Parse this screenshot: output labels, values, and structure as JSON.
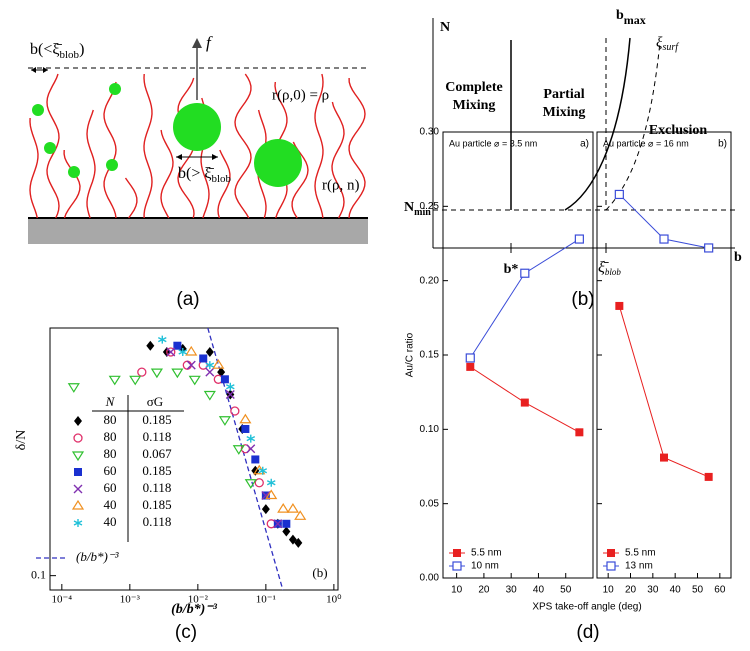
{
  "panel_labels": [
    "(a)",
    "(b)",
    "(c)",
    "(d)"
  ],
  "diagram_a": {
    "force": "f",
    "spacing_small": [
      "b(<",
      "ξ̄",
      "blob",
      ")"
    ],
    "spacing_large": [
      "b(> ",
      "ξ̄",
      "blob"
    ],
    "r_top": "r(ρ,0) = ρ",
    "r_chain": "r(ρ, n)"
  },
  "diagram_b": {
    "y_axis": "N",
    "x_axis": "b",
    "complete_mixing": [
      "Complete",
      "Mixing"
    ],
    "partial_mixing": [
      "Partial",
      "Mixing"
    ],
    "exclusion": "Exclusion",
    "b_max": [
      "b",
      "max"
    ],
    "xi_surf": [
      "ξ",
      "surf"
    ],
    "n_min": [
      "N",
      "min"
    ],
    "b_star": "b*",
    "xi_blob": [
      "ξ̄",
      "blob"
    ]
  },
  "chart_data": [
    {
      "type": "scatter",
      "xscale": "log",
      "yscale": "log",
      "xlabel": "(b/b*)⁻³",
      "ylabel": "δ/N",
      "panel_tag": "(b)",
      "xlim": [
        6.7e-05,
        1.15
      ],
      "ylim": [
        0.093,
        0.35
      ],
      "xticks": [
        {
          "value": 0.0001,
          "label": "10⁻⁴"
        },
        {
          "value": 0.001,
          "label": "10⁻³"
        },
        {
          "value": 0.01,
          "label": "10⁻²"
        },
        {
          "value": 0.1,
          "label": "10⁻¹"
        },
        {
          "value": 1,
          "label": "10⁰"
        }
      ],
      "yticks": [
        0.1
      ],
      "legend_headers": [
        "N",
        "σG"
      ],
      "series": [
        {
          "N": 80,
          "sigma_G": 0.185,
          "marker": "diamond",
          "color": "#000000",
          "x": [
            0.002,
            0.0035,
            0.006,
            0.015,
            0.022,
            0.03,
            0.045,
            0.07,
            0.1,
            0.15,
            0.2,
            0.25,
            0.3
          ],
          "y": [
            0.32,
            0.31,
            0.315,
            0.31,
            0.28,
            0.25,
            0.21,
            0.17,
            0.14,
            0.13,
            0.125,
            0.12,
            0.118
          ]
        },
        {
          "N": 80,
          "sigma_G": 0.118,
          "marker": "circle-open",
          "color": "#e0306a",
          "x": [
            0.0015,
            0.004,
            0.007,
            0.012,
            0.02,
            0.035,
            0.05,
            0.08,
            0.12
          ],
          "y": [
            0.28,
            0.31,
            0.29,
            0.29,
            0.27,
            0.23,
            0.19,
            0.16,
            0.13
          ]
        },
        {
          "N": 80,
          "sigma_G": 0.067,
          "marker": "triangle-down-open",
          "color": "#30c030",
          "x": [
            0.00015,
            0.0006,
            0.0012,
            0.0025,
            0.005,
            0.009,
            0.015,
            0.025,
            0.04,
            0.06
          ],
          "y": [
            0.26,
            0.27,
            0.27,
            0.28,
            0.28,
            0.27,
            0.25,
            0.22,
            0.19,
            0.16
          ]
        },
        {
          "N": 60,
          "sigma_G": 0.185,
          "marker": "square",
          "color": "#1a30d0",
          "x": [
            0.005,
            0.012,
            0.025,
            0.05,
            0.07,
            0.1,
            0.15,
            0.2
          ],
          "y": [
            0.32,
            0.3,
            0.27,
            0.21,
            0.18,
            0.15,
            0.13,
            0.13
          ]
        },
        {
          "N": 60,
          "sigma_G": 0.118,
          "marker": "x",
          "color": "#8030b0",
          "x": [
            0.004,
            0.008,
            0.015,
            0.03,
            0.06,
            0.1,
            0.15
          ],
          "y": [
            0.31,
            0.29,
            0.28,
            0.25,
            0.19,
            0.15,
            0.13
          ]
        },
        {
          "N": 40,
          "sigma_G": 0.185,
          "marker": "triangle-up-open",
          "color": "#f09020",
          "x": [
            0.008,
            0.02,
            0.05,
            0.08,
            0.12,
            0.18,
            0.25,
            0.32
          ],
          "y": [
            0.31,
            0.29,
            0.22,
            0.17,
            0.15,
            0.14,
            0.14,
            0.135
          ]
        },
        {
          "N": 40,
          "sigma_G": 0.118,
          "marker": "asterisk",
          "color": "#20c0d8",
          "x": [
            0.003,
            0.006,
            0.015,
            0.03,
            0.06,
            0.09,
            0.12
          ],
          "y": [
            0.33,
            0.31,
            0.29,
            0.26,
            0.2,
            0.17,
            0.16
          ]
        }
      ],
      "reference_line": {
        "name": "(b/b*)⁻³",
        "color": "#3030c0",
        "x": [
          0.014,
          0.178
        ],
        "y": [
          0.35,
          0.093
        ]
      }
    },
    {
      "type": "line",
      "annotation": "Au particle ⌀ = 3.5 nm",
      "panel_tag": "a)",
      "xlabel": "XPS take-off angle  (deg)",
      "ylabel": "Au/C ratio",
      "xlim": [
        5,
        60
      ],
      "ylim": [
        0,
        0.3
      ],
      "xticks": [
        10,
        20,
        30,
        40,
        50
      ],
      "yticks": [
        {
          "value": 0,
          "label": "0.00"
        },
        {
          "value": 0.05,
          "label": "0.05"
        },
        {
          "value": 0.1,
          "label": "0.10"
        },
        {
          "value": 0.15,
          "label": "0.15"
        },
        {
          "value": 0.2,
          "label": "0.20"
        },
        {
          "value": 0.25,
          "label": "0.25"
        },
        {
          "value": 0.3,
          "label": "0.30"
        }
      ],
      "x": [
        15,
        35,
        55
      ],
      "series": [
        {
          "name": "5.5 nm",
          "color": "#e82020",
          "marker": "square",
          "values": [
            0.142,
            0.118,
            0.098
          ]
        },
        {
          "name": "10 nm",
          "color": "#3a4cd8",
          "marker": "square-open",
          "values": [
            0.148,
            0.205,
            0.228
          ]
        }
      ]
    },
    {
      "type": "line",
      "annotation": "Au particle ⌀ = 16 nm",
      "panel_tag": "b)",
      "xlim": [
        5,
        65
      ],
      "ylim": [
        0,
        0.3
      ],
      "xticks": [
        10,
        20,
        30,
        40,
        50,
        60
      ],
      "yticks": [
        0,
        0.05,
        0.1,
        0.15,
        0.2,
        0.25,
        0.3
      ],
      "x": [
        15,
        35,
        55
      ],
      "series": [
        {
          "name": "5.5 nm",
          "color": "#e82020",
          "marker": "square",
          "values": [
            0.183,
            0.081,
            0.068
          ]
        },
        {
          "name": "13 nm",
          "color": "#3a4cd8",
          "marker": "square-open",
          "values": [
            0.258,
            0.228,
            0.222
          ]
        }
      ]
    }
  ]
}
